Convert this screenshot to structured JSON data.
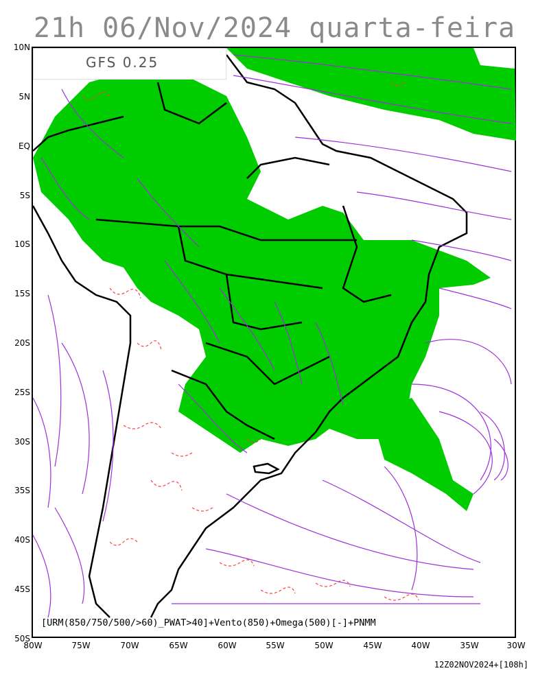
{
  "header": {
    "title": "21h 06/Nov/2024 quarta-feira",
    "model": "GFS 0.25"
  },
  "axes": {
    "lat_labels": [
      "10N",
      "5N",
      "EQ",
      "5S",
      "10S",
      "15S",
      "20S",
      "25S",
      "30S",
      "35S",
      "40S",
      "45S",
      "50S"
    ],
    "lon_labels": [
      "80W",
      "75W",
      "70W",
      "65W",
      "60W",
      "55W",
      "50W",
      "45W",
      "40W",
      "35W",
      "30W"
    ]
  },
  "legend": {
    "text": "[URM(850/750/500/>60)_PWAT>40]+Vento(850)+Omega(500)[-]+PNMM"
  },
  "run_info": {
    "text": "12Z02NOV2024+[108h]"
  },
  "colors": {
    "humidity_fill": "#00cc00",
    "omega_contour": "#ff4040",
    "streamline": "#9b30d9",
    "coastline": "#000000"
  }
}
